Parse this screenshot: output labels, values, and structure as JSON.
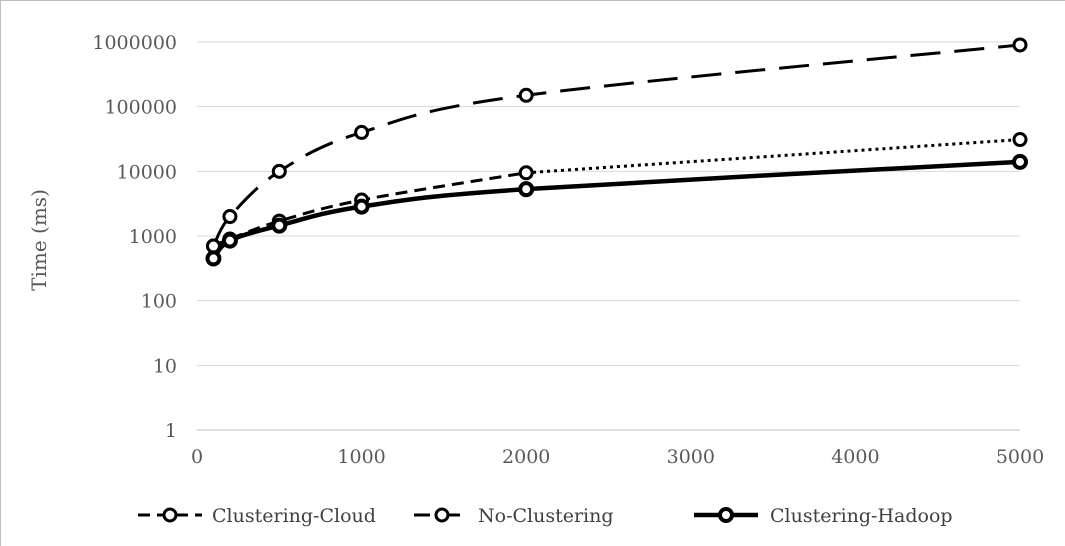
{
  "chart_data": {
    "type": "line",
    "title": "",
    "xlabel": "",
    "ylabel": "Time (ms)",
    "x_axis": {
      "scale": "linear",
      "range": [
        0,
        5000
      ],
      "ticks": [
        "0",
        "1000",
        "2000",
        "3000",
        "4000",
        "5000"
      ]
    },
    "y_axis": {
      "scale": "log",
      "range": [
        1,
        1000000
      ],
      "ticks": [
        "1",
        "10",
        "100",
        "1000",
        "10000",
        "100000",
        "1000000"
      ]
    },
    "grid": true,
    "legend": {
      "position": "bottom"
    },
    "series": [
      {
        "name": "Clustering-Cloud",
        "style": "dash-then-dot",
        "color": "#000000",
        "marker": "open-circle",
        "x": [
          100,
          200,
          500,
          1000,
          2000,
          5000
        ],
        "y": [
          700,
          900,
          1700,
          3600,
          9500,
          31000
        ]
      },
      {
        "name": "No-Clustering",
        "style": "dashed",
        "color": "#000000",
        "marker": "open-circle",
        "x": [
          100,
          200,
          500,
          1000,
          2000,
          5000
        ],
        "y": [
          700,
          2000,
          10000,
          40000,
          150000,
          900000
        ]
      },
      {
        "name": "Clustering-Hadoop",
        "style": "solid-thick",
        "color": "#000000",
        "marker": "open-circle",
        "x": [
          100,
          200,
          500,
          1000,
          2000,
          5000
        ],
        "y": [
          450,
          850,
          1450,
          2850,
          5300,
          14000
        ]
      }
    ]
  }
}
